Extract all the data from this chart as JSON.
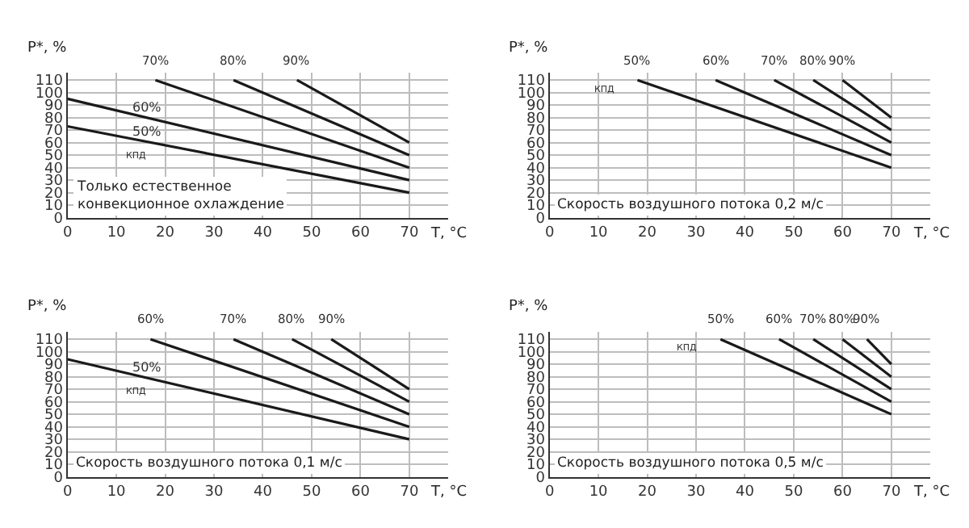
{
  "chart_data": [
    {
      "type": "line",
      "xlabel": "T, °C",
      "ylabel": "P*, %",
      "xlim": [
        0,
        78
      ],
      "ylim": [
        0,
        116
      ],
      "xticks": [
        0,
        10,
        20,
        30,
        40,
        50,
        60,
        70
      ],
      "yticks": [
        0,
        10,
        20,
        30,
        40,
        50,
        60,
        70,
        80,
        90,
        100,
        110
      ],
      "grid": true,
      "legend": false,
      "marker": "none",
      "line_style": "solid",
      "annotations": [
        "КПД",
        "Только естественное\nконвекционное охлаждение"
      ],
      "series": [
        {
          "name": "50%",
          "color": "#1a1a1a",
          "x": [
            0,
            70
          ],
          "values": [
            73,
            20
          ]
        },
        {
          "name": "60%",
          "color": "#1a1a1a",
          "x": [
            0,
            70
          ],
          "values": [
            95,
            30
          ]
        },
        {
          "name": "70%",
          "color": "#1a1a1a",
          "x": [
            18,
            70
          ],
          "values": [
            110,
            40
          ]
        },
        {
          "name": "80%",
          "color": "#1a1a1a",
          "x": [
            34,
            70
          ],
          "values": [
            110,
            50
          ]
        },
        {
          "name": "90%",
          "color": "#1a1a1a",
          "x": [
            47,
            70
          ],
          "values": [
            110,
            60
          ]
        }
      ]
    },
    {
      "type": "line",
      "xlabel": "T, °C",
      "ylabel": "P*, %",
      "xlim": [
        0,
        78
      ],
      "ylim": [
        0,
        116
      ],
      "xticks": [
        0,
        10,
        20,
        30,
        40,
        50,
        60,
        70
      ],
      "yticks": [
        0,
        10,
        20,
        30,
        40,
        50,
        60,
        70,
        80,
        90,
        100,
        110
      ],
      "grid": true,
      "legend": false,
      "marker": "none",
      "line_style": "solid",
      "annotations": [
        "КПД",
        "Скорость воздушного потока 0,2 м/с"
      ],
      "series": [
        {
          "name": "50%",
          "color": "#1a1a1a",
          "x": [
            18,
            70
          ],
          "values": [
            110,
            40
          ]
        },
        {
          "name": "60%",
          "color": "#1a1a1a",
          "x": [
            34,
            70
          ],
          "values": [
            110,
            50
          ]
        },
        {
          "name": "70%",
          "color": "#1a1a1a",
          "x": [
            46,
            70
          ],
          "values": [
            110,
            60
          ]
        },
        {
          "name": "80%",
          "color": "#1a1a1a",
          "x": [
            54,
            70
          ],
          "values": [
            110,
            70
          ]
        },
        {
          "name": "90%",
          "color": "#1a1a1a",
          "x": [
            60,
            70
          ],
          "values": [
            110,
            80
          ]
        }
      ]
    },
    {
      "type": "line",
      "xlabel": "T, °C",
      "ylabel": "P*, %",
      "xlim": [
        0,
        78
      ],
      "ylim": [
        0,
        116
      ],
      "xticks": [
        0,
        10,
        20,
        30,
        40,
        50,
        60,
        70
      ],
      "yticks": [
        0,
        10,
        20,
        30,
        40,
        50,
        60,
        70,
        80,
        90,
        100,
        110
      ],
      "grid": true,
      "legend": false,
      "marker": "none",
      "line_style": "solid",
      "annotations": [
        "КПД",
        "Скорость воздушного потока 0,1 м/с"
      ],
      "series": [
        {
          "name": "50%",
          "color": "#1a1a1a",
          "x": [
            0,
            70
          ],
          "values": [
            94,
            30
          ]
        },
        {
          "name": "60%",
          "color": "#1a1a1a",
          "x": [
            17,
            70
          ],
          "values": [
            110,
            40
          ]
        },
        {
          "name": "70%",
          "color": "#1a1a1a",
          "x": [
            34,
            70
          ],
          "values": [
            110,
            50
          ]
        },
        {
          "name": "80%",
          "color": "#1a1a1a",
          "x": [
            46,
            70
          ],
          "values": [
            110,
            60
          ]
        },
        {
          "name": "90%",
          "color": "#1a1a1a",
          "x": [
            54,
            70
          ],
          "values": [
            110,
            70
          ]
        }
      ]
    },
    {
      "type": "line",
      "xlabel": "T, °C",
      "ylabel": "P*, %",
      "xlim": [
        0,
        78
      ],
      "ylim": [
        0,
        116
      ],
      "xticks": [
        0,
        10,
        20,
        30,
        40,
        50,
        60,
        70
      ],
      "yticks": [
        0,
        10,
        20,
        30,
        40,
        50,
        60,
        70,
        80,
        90,
        100,
        110
      ],
      "grid": true,
      "legend": false,
      "marker": "none",
      "line_style": "solid",
      "annotations": [
        "КПД",
        "Скорость воздушного потока 0,5 м/с"
      ],
      "series": [
        {
          "name": "50%",
          "color": "#1a1a1a",
          "x": [
            35,
            70
          ],
          "values": [
            110,
            50
          ]
        },
        {
          "name": "60%",
          "color": "#1a1a1a",
          "x": [
            47,
            70
          ],
          "values": [
            110,
            60
          ]
        },
        {
          "name": "70%",
          "color": "#1a1a1a",
          "x": [
            54,
            70
          ],
          "values": [
            110,
            70
          ]
        },
        {
          "name": "80%",
          "color": "#1a1a1a",
          "x": [
            60,
            70
          ],
          "values": [
            110,
            80
          ]
        },
        {
          "name": "90%",
          "color": "#1a1a1a",
          "x": [
            65,
            70
          ],
          "values": [
            110,
            90
          ]
        }
      ]
    }
  ]
}
